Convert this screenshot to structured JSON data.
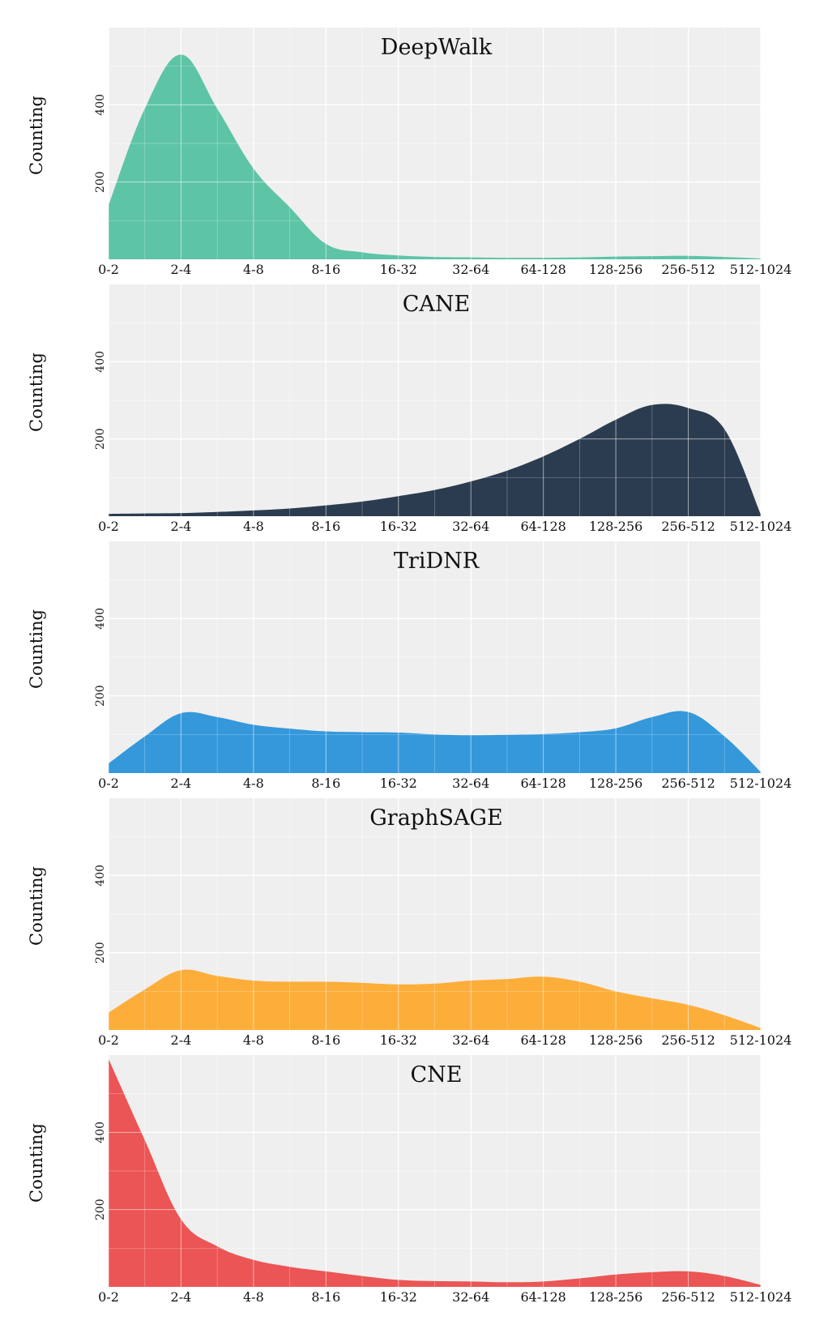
{
  "chart_data": [
    {
      "type": "area",
      "title": "DeepWalk",
      "ylabel": "Counting",
      "color": "#5ec4a6",
      "categories": [
        "0-2",
        "2-4",
        "4-8",
        "8-16",
        "16-32",
        "32-64",
        "64-128",
        "128-256",
        "256-512",
        "512-1024"
      ],
      "x": [
        0,
        0.5,
        1,
        1.5,
        2,
        2.5,
        3,
        3.5,
        4,
        4.5,
        5,
        5.5,
        6,
        6.5,
        7,
        7.5,
        8,
        8.5,
        9
      ],
      "values": [
        140,
        390,
        530,
        390,
        235,
        135,
        40,
        18,
        10,
        6,
        5,
        4,
        4,
        5,
        7,
        8,
        9,
        6,
        2
      ],
      "yticks": [
        200,
        400
      ],
      "ylim": [
        0,
        600
      ],
      "grid": true
    },
    {
      "type": "area",
      "title": "CANE",
      "ylabel": "Counting",
      "color": "#2c3c50",
      "categories": [
        "0-2",
        "2-4",
        "4-8",
        "8-16",
        "16-32",
        "32-64",
        "64-128",
        "128-256",
        "256-512",
        "512-1024"
      ],
      "x": [
        0,
        0.5,
        1,
        1.5,
        2,
        2.5,
        3,
        3.5,
        4,
        4.5,
        5,
        5.5,
        6,
        6.5,
        7,
        7.5,
        8,
        8.5,
        9
      ],
      "values": [
        6,
        7,
        8,
        11,
        15,
        20,
        28,
        38,
        52,
        68,
        90,
        118,
        155,
        200,
        250,
        288,
        280,
        225,
        5
      ],
      "yticks": [
        200,
        400
      ],
      "ylim": [
        0,
        600
      ],
      "grid": true
    },
    {
      "type": "area",
      "title": "TriDNR",
      "ylabel": "Counting",
      "color": "#3498db",
      "categories": [
        "0-2",
        "2-4",
        "4-8",
        "8-16",
        "16-32",
        "32-64",
        "64-128",
        "128-256",
        "256-512",
        "512-1024"
      ],
      "x": [
        0,
        0.5,
        1,
        1.5,
        2,
        2.5,
        3,
        3.5,
        4,
        4.5,
        5,
        5.5,
        6,
        6.5,
        7,
        7.5,
        8,
        8.5,
        9
      ],
      "values": [
        25,
        95,
        155,
        145,
        125,
        115,
        108,
        106,
        105,
        100,
        98,
        99,
        101,
        106,
        116,
        145,
        158,
        95,
        3
      ],
      "yticks": [
        200,
        400
      ],
      "ylim": [
        0,
        600
      ],
      "grid": true
    },
    {
      "type": "area",
      "title": "GraphSAGE",
      "ylabel": "Counting",
      "color": "#fdae3a",
      "categories": [
        "0-2",
        "2-4",
        "4-8",
        "8-16",
        "16-32",
        "32-64",
        "64-128",
        "128-256",
        "256-512",
        "512-1024"
      ],
      "x": [
        0,
        0.5,
        1,
        1.5,
        2,
        2.5,
        3,
        3.5,
        4,
        4.5,
        5,
        5.5,
        6,
        6.5,
        7,
        7.5,
        8,
        8.5,
        9
      ],
      "values": [
        45,
        105,
        155,
        140,
        128,
        125,
        125,
        122,
        118,
        120,
        128,
        132,
        138,
        125,
        100,
        82,
        65,
        38,
        5
      ],
      "yticks": [
        200,
        400
      ],
      "ylim": [
        0,
        600
      ],
      "grid": true
    },
    {
      "type": "area",
      "title": "CNE",
      "ylabel": "Counting",
      "color": "#ec5555",
      "categories": [
        "0-2",
        "2-4",
        "4-8",
        "8-16",
        "16-32",
        "32-64",
        "64-128",
        "128-256",
        "256-512",
        "512-1024"
      ],
      "x": [
        0,
        0.5,
        1,
        1.5,
        2,
        2.5,
        3,
        3.5,
        4,
        4.5,
        5,
        5.5,
        6,
        6.5,
        7,
        7.5,
        8,
        8.5,
        9
      ],
      "values": [
        590,
        380,
        175,
        105,
        70,
        52,
        40,
        28,
        18,
        15,
        14,
        12,
        14,
        22,
        32,
        38,
        40,
        28,
        5
      ],
      "yticks": [
        200,
        400
      ],
      "ylim": [
        0,
        600
      ],
      "grid": true
    }
  ]
}
